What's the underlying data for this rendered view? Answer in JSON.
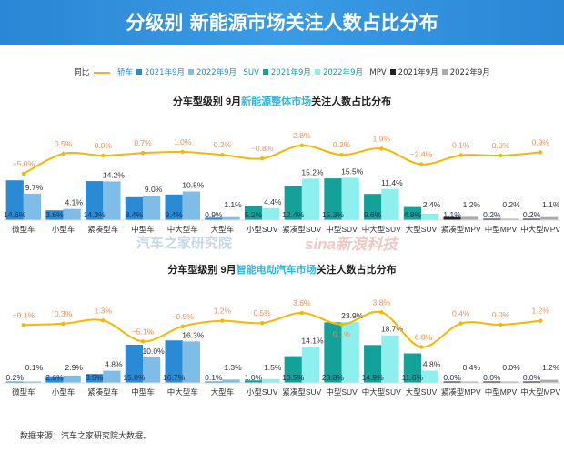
{
  "header": {
    "title": "分级别 新能源市场关注人数占比分布"
  },
  "legend": {
    "yoy": "同比",
    "sedan": "轿车",
    "suv": "SUV",
    "mpv": "MPV",
    "y2021": "2021年9月",
    "y2022": "2022年9月"
  },
  "watermarks": {
    "autohome": "汽车之家研究院",
    "sina": "sina新浪科技"
  },
  "footer": "数据来源：汽车之家研究院大数据。",
  "colors": {
    "sedan2021": "#2a8bd4",
    "sedan2022": "#7fbde8",
    "suv2021": "#13a199",
    "suv2022": "#8ef0ee",
    "mpv2021": "#222222",
    "mpv2022": "#aaaaaa",
    "yoy_line": "#f5b800",
    "yoy_label": "#ef9057"
  },
  "chart_data": [
    {
      "type": "bar",
      "title_parts": [
        "分车型级别 9月",
        "新能源整体市场",
        "关注人数占比分布"
      ],
      "categories": [
        "微型车",
        "小型车",
        "紧凑型车",
        "中型车",
        "中大型车",
        "大型车",
        "小型SUV",
        "紧凑型SUV",
        "中型SUV",
        "中大型SUV",
        "大型SUV",
        "紧凑型MPV",
        "中型MPV",
        "中大型MPV"
      ],
      "groups": [
        "sedan",
        "sedan",
        "sedan",
        "sedan",
        "sedan",
        "sedan",
        "suv",
        "suv",
        "suv",
        "suv",
        "suv",
        "mpv",
        "mpv",
        "mpv"
      ],
      "series": [
        {
          "name": "2021年9月",
          "values": [
            14.6,
            3.6,
            14.3,
            8.4,
            9.4,
            0.9,
            5.2,
            12.4,
            15.3,
            9.6,
            4.8,
            1.1,
            0.2,
            0.2
          ]
        },
        {
          "name": "2022年9月",
          "values": [
            9.7,
            4.1,
            14.2,
            9.0,
            10.5,
            1.1,
            4.4,
            15.2,
            15.5,
            11.4,
            2.4,
            1.2,
            0.2,
            1.1
          ]
        },
        {
          "name": "同比",
          "type": "line",
          "values": [
            -5.0,
            0.5,
            0.0,
            0.7,
            1.0,
            0.2,
            -0.8,
            2.8,
            0.2,
            1.9,
            -2.4,
            0.1,
            0.0,
            0.9
          ]
        }
      ],
      "unit": "%"
    },
    {
      "type": "bar",
      "title_parts": [
        "分车型级别 9月",
        "智能电动汽车市场",
        "关注人数占比分布"
      ],
      "categories": [
        "微型车",
        "小型车",
        "紧凑型车",
        "中型车",
        "中大型车",
        "大型车",
        "小型SUV",
        "紧凑型SUV",
        "中型SUV",
        "中大型SUV",
        "大型SUV",
        "紧凑型MPV",
        "中型MPV",
        "中大型MPV"
      ],
      "groups": [
        "sedan",
        "sedan",
        "sedan",
        "sedan",
        "sedan",
        "sedan",
        "suv",
        "suv",
        "suv",
        "suv",
        "suv",
        "mpv",
        "mpv",
        "mpv"
      ],
      "series": [
        {
          "name": "2021年9月",
          "values": [
            0.2,
            2.6,
            3.5,
            15.0,
            16.7,
            0.1,
            1.0,
            10.5,
            23.8,
            14.9,
            11.6,
            0.0,
            0.0,
            0.0
          ]
        },
        {
          "name": "2022年9月",
          "values": [
            0.1,
            2.9,
            4.8,
            10.0,
            16.3,
            1.3,
            1.5,
            14.1,
            23.9,
            18.7,
            4.8,
            0.4,
            0.0,
            1.2
          ]
        },
        {
          "name": "同比",
          "type": "line",
          "values": [
            -0.1,
            0.3,
            1.3,
            -5.1,
            -0.5,
            1.2,
            0.5,
            3.6,
            0.1,
            3.8,
            -6.8,
            0.4,
            0.0,
            1.2
          ]
        }
      ],
      "unit": "%"
    }
  ]
}
